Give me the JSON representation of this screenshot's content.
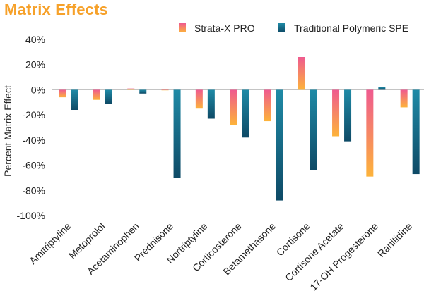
{
  "chart_data": {
    "type": "bar",
    "title": "Matrix Effects",
    "xlabel": "",
    "ylabel": "Percent Matrix Effect",
    "ylim": [
      -100,
      40
    ],
    "yticks": [
      40,
      20,
      0,
      -20,
      -40,
      -60,
      -80,
      -100
    ],
    "ytick_labels": [
      "40%",
      "20%",
      "0%",
      "-20%",
      "-40%",
      "-60%",
      "-80%",
      "-100%"
    ],
    "legend_position": "top-right",
    "grid": false,
    "categories": [
      "Amitriptyline",
      "Metoprolol",
      "Acetaminophen",
      "Prednisone",
      "Nortriptyline",
      "Corticosterone",
      "Betamethasone",
      "Cortisone",
      "Cortisone Acetate",
      "17-OH Progesterone",
      "Ranitidine"
    ],
    "series": [
      {
        "name": "Strata-X PRO",
        "values": [
          -6,
          -8,
          1,
          0,
          -15,
          -28,
          -25,
          26,
          -37,
          -69,
          -14
        ]
      },
      {
        "name": "Traditional Polymeric SPE",
        "values": [
          -16,
          -11,
          -3,
          -70,
          -23,
          -38,
          -88,
          -64,
          -41,
          2,
          -67
        ]
      }
    ],
    "colors": {
      "strata_top": "#ef5a8f",
      "strata_bottom": "#fdb33a",
      "trad_top": "#1f8aa6",
      "trad_bottom": "#0e4a66",
      "title": "#f6a12a"
    }
  }
}
